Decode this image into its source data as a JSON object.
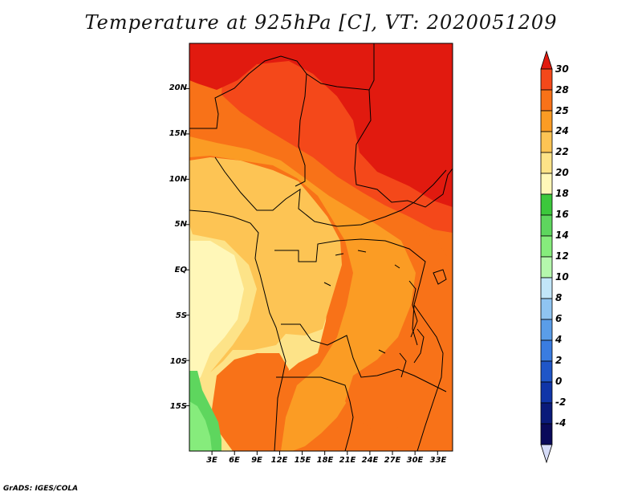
{
  "map": {
    "title": "Temperature at 925hPa [C], VT: 2020051209",
    "y_ticks": [
      "20N",
      "15N",
      "10N",
      "5N",
      "EQ",
      "5S",
      "10S",
      "15S"
    ],
    "x_ticks": [
      "3E",
      "6E",
      "9E",
      "12E",
      "15E",
      "18E",
      "21E",
      "24E",
      "27E",
      "30E",
      "33E"
    ],
    "extent": {
      "lon": [
        0,
        35
      ],
      "lat": [
        -20,
        25
      ]
    },
    "colors": {
      "c30": "#e11a0f",
      "c28": "#f4481a",
      "c25": "#f87218",
      "c24": "#fb9c24",
      "c22": "#fdc454",
      "c20": "#fde388",
      "c18": "#fff7b8",
      "c16": "#5ed65e",
      "c14": "#86ec7c"
    }
  },
  "colorbar": {
    "labels": [
      "30",
      "28",
      "25",
      "24",
      "22",
      "20",
      "18",
      "16",
      "14",
      "12",
      "10",
      "8",
      "6",
      "4",
      "2",
      "0",
      "-2",
      "-4"
    ],
    "colors": [
      "#e11a0f",
      "#f4481a",
      "#f87218",
      "#fb9c24",
      "#fdc454",
      "#fde388",
      "#fff7b8",
      "#3cc83c",
      "#5ed65e",
      "#86ec7c",
      "#b5f7ad",
      "#c2e6f9",
      "#8fc4f1",
      "#5a9de8",
      "#3a7ce0",
      "#1f56c8",
      "#1035a8",
      "#0a1a7a",
      "#0a0a5a"
    ],
    "under_color": "#d6dcf8"
  },
  "credit": "GrADS: IGES/COLA"
}
